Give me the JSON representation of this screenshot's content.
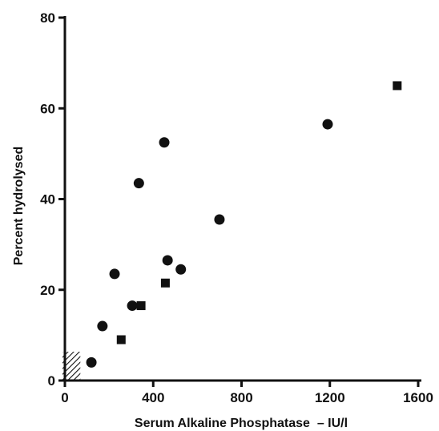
{
  "chart_data": {
    "type": "scatter",
    "title": "",
    "xlabel": "Serum Alkaline Phosphatase  – IU/l",
    "ylabel": "Percent hydrolysed",
    "xlim": [
      0,
      1600
    ],
    "ylim": [
      0,
      80
    ],
    "x_ticks": [
      0,
      400,
      800,
      1200,
      1600
    ],
    "y_ticks": [
      0,
      20,
      40,
      60,
      80
    ],
    "x_tick_labels": [
      "0",
      "400",
      "800",
      "1200",
      "1600"
    ],
    "y_tick_labels": [
      "0",
      "20",
      "40",
      "60",
      "80"
    ],
    "grid": false,
    "legend": "none",
    "series": [
      {
        "marker": "circle",
        "color": "#111111",
        "x": [
          120,
          170,
          225,
          305,
          335,
          450,
          465,
          525,
          700,
          1190
        ],
        "y": [
          4,
          12,
          23.5,
          16.5,
          43.5,
          52.5,
          26.5,
          24.5,
          35.5,
          56.5
        ]
      },
      {
        "marker": "square",
        "color": "#111111",
        "x": [
          255,
          345,
          455,
          1505
        ],
        "y": [
          9,
          16.5,
          21.5,
          65
        ]
      },
      {
        "marker": "hatched-region",
        "color": "#111111",
        "x": [
          0,
          70
        ],
        "y": [
          0,
          6
        ]
      }
    ]
  }
}
